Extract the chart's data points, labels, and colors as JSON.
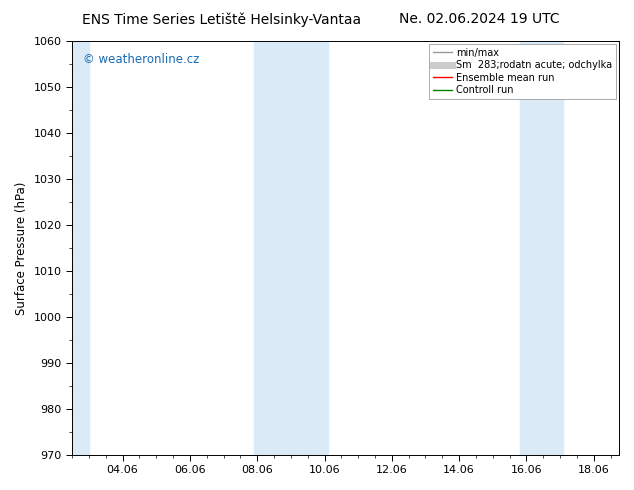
{
  "title_left": "ENS Time Series Letiště Helsinky-Vantaa",
  "title_right": "Ne. 02.06.2024 19 UTC",
  "ylabel": "Surface Pressure (hPa)",
  "ylim": [
    970,
    1060
  ],
  "yticks": [
    970,
    980,
    990,
    1000,
    1010,
    1020,
    1030,
    1040,
    1050,
    1060
  ],
  "xlim_start": 2.5,
  "xlim_end": 18.75,
  "xtick_positions": [
    4,
    6,
    8,
    10,
    12,
    14,
    16,
    18
  ],
  "xtick_labels": [
    "04.06",
    "06.06",
    "08.06",
    "10.06",
    "12.06",
    "14.06",
    "16.06",
    "18.06"
  ],
  "shaded_bands": [
    {
      "x_start": 2.5,
      "x_end": 3.0,
      "color": "#daeaf7",
      "alpha": 1.0
    },
    {
      "x_start": 7.9,
      "x_end": 10.1,
      "color": "#daeaf7",
      "alpha": 1.0
    },
    {
      "x_start": 15.8,
      "x_end": 17.1,
      "color": "#daeaf7",
      "alpha": 1.0
    }
  ],
  "watermark_text": "© weatheronline.cz",
  "watermark_color": "#1a6bb5",
  "legend_labels": [
    "min/max",
    "Sm  283;rodatn acute; odchylka",
    "Ensemble mean run",
    "Controll run"
  ],
  "legend_colors": [
    "#999999",
    "#cccccc",
    "red",
    "green"
  ],
  "legend_lws": [
    1.0,
    5,
    1.0,
    1.0
  ],
  "bg_color": "#ffffff",
  "title_fontsize": 10,
  "tick_fontsize": 8,
  "label_fontsize": 8.5,
  "legend_fontsize": 7
}
